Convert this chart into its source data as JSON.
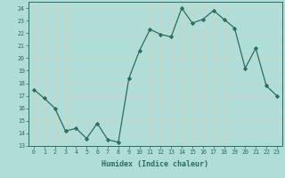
{
  "x": [
    0,
    1,
    2,
    3,
    4,
    5,
    6,
    7,
    8,
    9,
    10,
    11,
    12,
    13,
    14,
    15,
    16,
    17,
    18,
    19,
    20,
    21,
    22,
    23
  ],
  "y": [
    17.5,
    16.8,
    16.0,
    14.2,
    14.4,
    13.6,
    14.8,
    13.5,
    13.3,
    18.4,
    20.6,
    22.3,
    21.9,
    21.7,
    24.0,
    22.8,
    23.1,
    23.8,
    23.1,
    22.4,
    19.2,
    20.8,
    17.8,
    17.0
  ],
  "xlabel": "Humidex (Indice chaleur)",
  "ylim": [
    13,
    24.5
  ],
  "xlim": [
    -0.5,
    23.5
  ],
  "line_color": "#2b6e60",
  "marker_color": "#2b6e60",
  "bg_color": "#b0ddd8",
  "grid_color": "#c8d8c8",
  "tick_labels": [
    "0",
    "1",
    "2",
    "3",
    "4",
    "5",
    "6",
    "7",
    "8",
    "9",
    "10",
    "11",
    "12",
    "13",
    "14",
    "15",
    "16",
    "17",
    "18",
    "19",
    "20",
    "21",
    "22",
    "23"
  ],
  "yticks": [
    13,
    14,
    15,
    16,
    17,
    18,
    19,
    20,
    21,
    22,
    23,
    24
  ]
}
